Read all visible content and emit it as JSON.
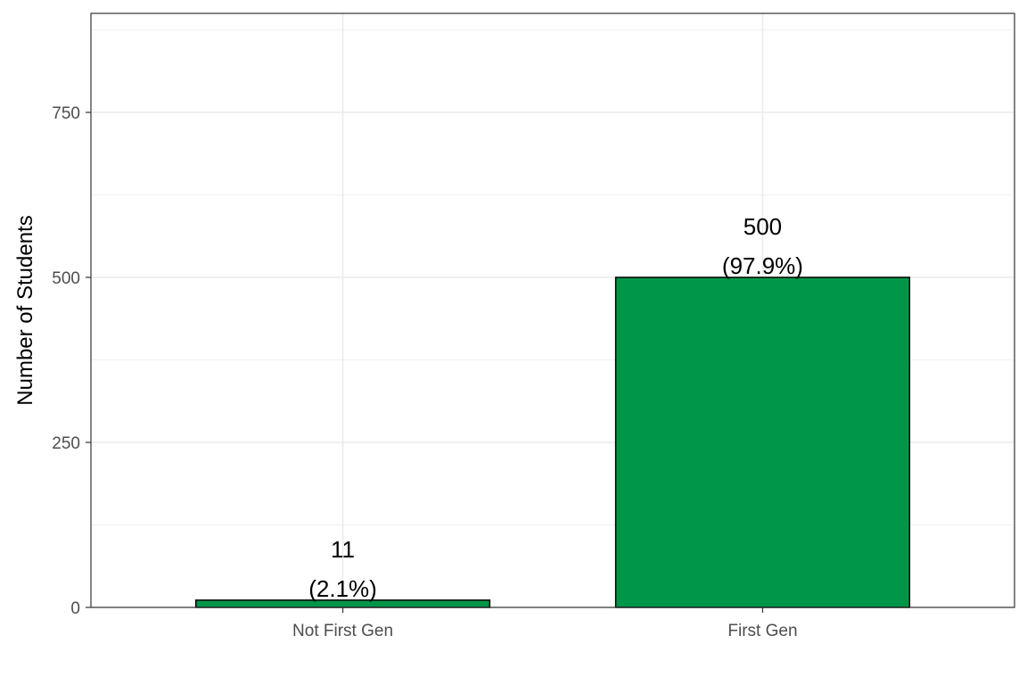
{
  "chart_data": {
    "type": "bar",
    "categories": [
      "Not First Gen",
      "First Gen"
    ],
    "values": [
      11,
      500
    ],
    "labels": [
      {
        "count": "11",
        "percent": "(2.1%)"
      },
      {
        "count": "500",
        "percent": "(97.9%)"
      }
    ],
    "title": "",
    "xlabel": "",
    "ylabel": "Number of Students",
    "ylim": [
      0,
      900
    ],
    "yticks": [
      0,
      250,
      500,
      750
    ],
    "ytick_labels": [
      "0",
      "250",
      "500",
      "750"
    ],
    "grid": true,
    "bar_color": "#009649",
    "bar_border_color": "#000000"
  }
}
